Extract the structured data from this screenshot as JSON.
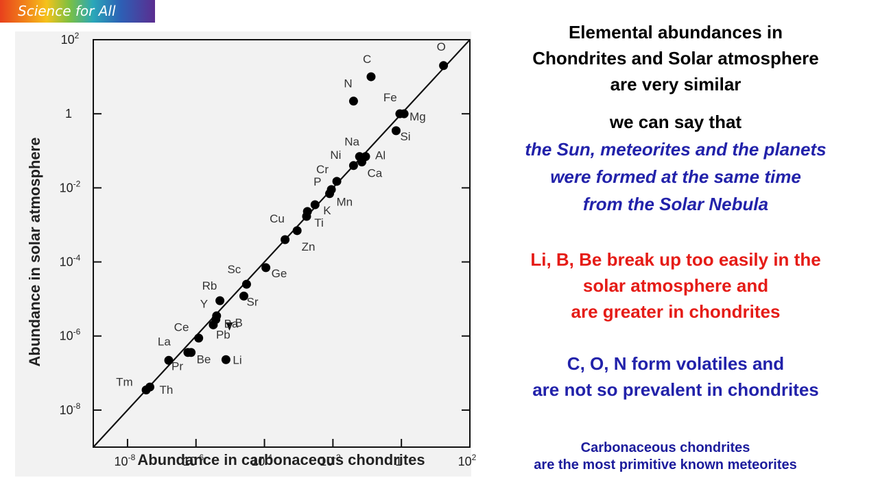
{
  "badge": {
    "label": "Science for All"
  },
  "title_lines": [
    "Elemental abundances in",
    "Chondrites and Solar atmosphere",
    "are very similar"
  ],
  "intro": "we can say that",
  "conclusion_lines": [
    "the Sun, meteorites and the planets",
    "were formed at the same time",
    "from the Solar Nebula"
  ],
  "libe_lines": [
    "Li, B, Be break up too easily in the",
    "solar atmosphere and",
    "are greater in chondrites"
  ],
  "con_lines": [
    "C, O, N form volatiles and",
    "are not so prevalent in chondrites"
  ],
  "note_lines": [
    "Carbonaceous chondrites",
    "are the most primitive known meteorites"
  ],
  "colors": {
    "title": "#000000",
    "conclusion": "#2222aa",
    "libe": "#e51c17",
    "con": "#2222aa",
    "note": "#1c1c9c",
    "points": "#000000"
  },
  "chart_data": {
    "type": "scatter",
    "xlabel": "Abundance in carbonaceous chondrites",
    "ylabel": "Abundance in solar atmosphere",
    "xscale": "log",
    "yscale": "log",
    "xlim": [
      1e-09,
      100
    ],
    "ylim": [
      1e-09,
      100
    ],
    "x_ticks": [
      {
        "base": "10",
        "exp": "-8",
        "value": 1e-08
      },
      {
        "base": "10",
        "exp": "-6",
        "value": 1e-06
      },
      {
        "base": "10",
        "exp": "-4",
        "value": 0.0001
      },
      {
        "base": "10",
        "exp": "-2",
        "value": 0.01
      },
      {
        "base": "1",
        "exp": "",
        "value": 1
      },
      {
        "base": "10",
        "exp": "2",
        "value": 100
      }
    ],
    "y_ticks": [
      {
        "base": "10",
        "exp": "-8",
        "value": 1e-08
      },
      {
        "base": "10",
        "exp": "-6",
        "value": 1e-06
      },
      {
        "base": "10",
        "exp": "-4",
        "value": 0.0001
      },
      {
        "base": "10",
        "exp": "-2",
        "value": 0.01
      },
      {
        "base": "1",
        "exp": "",
        "value": 1
      },
      {
        "base": "10",
        "exp": "2",
        "value": 100
      }
    ],
    "reference_line": "y = x",
    "grid": false,
    "points": [
      {
        "label": "O",
        "x": 17,
        "y": 20
      },
      {
        "label": "C",
        "x": 0.13,
        "y": 10
      },
      {
        "label": "N",
        "x": 0.04,
        "y": 2.2
      },
      {
        "label": "Fe",
        "x": 0.9,
        "y": 1.0
      },
      {
        "label": "Mg",
        "x": 1.2,
        "y": 1.0
      },
      {
        "label": "Si",
        "x": 0.7,
        "y": 0.35
      },
      {
        "label": "Na",
        "x": 0.06,
        "y": 0.07
      },
      {
        "label": "Al",
        "x": 0.09,
        "y": 0.07
      },
      {
        "label": "Ni",
        "x": 0.04,
        "y": 0.04
      },
      {
        "label": "Ca",
        "x": 0.07,
        "y": 0.05
      },
      {
        "label": "Cr",
        "x": 0.013,
        "y": 0.015
      },
      {
        "label": "P",
        "x": 0.009,
        "y": 0.009
      },
      {
        "label": "Mn",
        "x": 0.008,
        "y": 0.007
      },
      {
        "label": "K",
        "x": 0.003,
        "y": 0.0035
      },
      {
        "label": "Ti",
        "x": 0.0018,
        "y": 0.0023
      },
      {
        "label": "Ti",
        "x": 0.0017,
        "y": 0.0017
      },
      {
        "label": "Cu",
        "x": 0.0009,
        "y": 0.0007
      },
      {
        "label": "Zn",
        "x": 0.0004,
        "y": 0.0004
      },
      {
        "label": "Ge",
        "x": 0.00011,
        "y": 7e-05
      },
      {
        "label": "Sc",
        "x": 3e-05,
        "y": 2.5e-05
      },
      {
        "label": "Sr",
        "x": 2.5e-05,
        "y": 1.2e-05
      },
      {
        "label": "Rb",
        "x": 5e-06,
        "y": 9e-06
      },
      {
        "label": "Y",
        "x": 4e-06,
        "y": 3.5e-06
      },
      {
        "label": "Ba",
        "x": 3.8e-06,
        "y": 2.8e-06
      },
      {
        "label": "Pb",
        "x": 3.2e-06,
        "y": 2e-06
      },
      {
        "label": "Ce",
        "x": 1.2e-06,
        "y": 8.8e-07
      },
      {
        "label": "La",
        "x": 5.8e-07,
        "y": 3.6e-07
      },
      {
        "label": "Be",
        "x": 7.2e-07,
        "y": 3.6e-07
      },
      {
        "label": "Pr",
        "x": 1.6e-07,
        "y": 2.2e-07
      },
      {
        "label": "Tm",
        "x": 3.5e-08,
        "y": 3.5e-08
      },
      {
        "label": "Th",
        "x": 4.5e-08,
        "y": 4.2e-08
      },
      {
        "label": "Li",
        "x": 7.5e-06,
        "y": 2.3e-07
      },
      {
        "label": "B",
        "x": 9.5e-06,
        "y": 1.8e-06
      }
    ]
  }
}
